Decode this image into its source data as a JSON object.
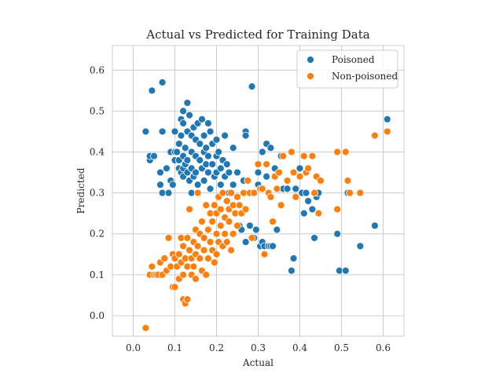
{
  "chart_data": {
    "type": "scatter",
    "title": "Actual vs Predicted for Training Data",
    "xlabel": "Actual",
    "ylabel": "Predicted",
    "xlim": [
      -0.05,
      0.65
    ],
    "ylim": [
      -0.05,
      0.66
    ],
    "xticks": [
      "0.0",
      "0.1",
      "0.2",
      "0.3",
      "0.4",
      "0.5",
      "0.6"
    ],
    "yticks": [
      "0.0",
      "0.1",
      "0.2",
      "0.3",
      "0.4",
      "0.5",
      "0.6"
    ],
    "grid": true,
    "legend_position": "top-right",
    "series": [
      {
        "name": "Poisoned",
        "color": "#1f77b4",
        "points": [
          [
            0.03,
            0.45
          ],
          [
            0.04,
            0.38
          ],
          [
            0.04,
            0.39
          ],
          [
            0.045,
            0.55
          ],
          [
            0.05,
            0.39
          ],
          [
            0.065,
            0.35
          ],
          [
            0.065,
            0.32
          ],
          [
            0.07,
            0.57
          ],
          [
            0.07,
            0.45
          ],
          [
            0.07,
            0.3
          ],
          [
            0.08,
            0.36
          ],
          [
            0.085,
            0.3
          ],
          [
            0.09,
            0.4
          ],
          [
            0.09,
            0.33
          ],
          [
            0.095,
            0.32
          ],
          [
            0.1,
            0.45
          ],
          [
            0.1,
            0.4
          ],
          [
            0.1,
            0.38
          ],
          [
            0.105,
            0.4
          ],
          [
            0.11,
            0.38
          ],
          [
            0.11,
            0.36
          ],
          [
            0.11,
            0.42
          ],
          [
            0.115,
            0.48
          ],
          [
            0.115,
            0.44
          ],
          [
            0.115,
            0.35
          ],
          [
            0.12,
            0.5
          ],
          [
            0.12,
            0.47
          ],
          [
            0.12,
            0.39
          ],
          [
            0.12,
            0.36
          ],
          [
            0.12,
            0.34
          ],
          [
            0.125,
            0.41
          ],
          [
            0.125,
            0.37
          ],
          [
            0.13,
            0.52
          ],
          [
            0.13,
            0.45
          ],
          [
            0.13,
            0.38
          ],
          [
            0.13,
            0.35
          ],
          [
            0.135,
            0.49
          ],
          [
            0.135,
            0.33
          ],
          [
            0.14,
            0.44
          ],
          [
            0.14,
            0.4
          ],
          [
            0.14,
            0.36
          ],
          [
            0.14,
            0.3
          ],
          [
            0.145,
            0.46
          ],
          [
            0.145,
            0.34
          ],
          [
            0.15,
            0.43
          ],
          [
            0.15,
            0.39
          ],
          [
            0.15,
            0.35
          ],
          [
            0.155,
            0.47
          ],
          [
            0.155,
            0.32
          ],
          [
            0.16,
            0.42
          ],
          [
            0.16,
            0.38
          ],
          [
            0.165,
            0.48
          ],
          [
            0.165,
            0.36
          ],
          [
            0.17,
            0.44
          ],
          [
            0.17,
            0.4
          ],
          [
            0.17,
            0.33
          ],
          [
            0.175,
            0.41
          ],
          [
            0.175,
            0.37
          ],
          [
            0.18,
            0.47
          ],
          [
            0.18,
            0.39
          ],
          [
            0.18,
            0.35
          ],
          [
            0.185,
            0.45
          ],
          [
            0.185,
            0.31
          ],
          [
            0.19,
            0.42
          ],
          [
            0.19,
            0.37
          ],
          [
            0.195,
            0.34
          ],
          [
            0.2,
            0.43
          ],
          [
            0.2,
            0.39
          ],
          [
            0.2,
            0.35
          ],
          [
            0.205,
            0.4
          ],
          [
            0.21,
            0.36
          ],
          [
            0.21,
            0.32
          ],
          [
            0.215,
            0.38
          ],
          [
            0.22,
            0.44
          ],
          [
            0.22,
            0.34
          ],
          [
            0.225,
            0.37
          ],
          [
            0.23,
            0.35
          ],
          [
            0.23,
            0.3
          ],
          [
            0.24,
            0.41
          ],
          [
            0.24,
            0.32
          ],
          [
            0.25,
            0.35
          ],
          [
            0.255,
            0.22
          ],
          [
            0.26,
            0.21
          ],
          [
            0.265,
            0.33
          ],
          [
            0.27,
            0.45
          ],
          [
            0.27,
            0.44
          ],
          [
            0.27,
            0.18
          ],
          [
            0.28,
            0.22
          ],
          [
            0.285,
            0.56
          ],
          [
            0.29,
            0.3
          ],
          [
            0.29,
            0.19
          ],
          [
            0.295,
            0.21
          ],
          [
            0.3,
            0.35
          ],
          [
            0.3,
            0.32
          ],
          [
            0.305,
            0.17
          ],
          [
            0.31,
            0.4
          ],
          [
            0.31,
            0.18
          ],
          [
            0.315,
            0.17
          ],
          [
            0.32,
            0.42
          ],
          [
            0.32,
            0.34
          ],
          [
            0.325,
            0.17
          ],
          [
            0.33,
            0.41
          ],
          [
            0.33,
            0.17
          ],
          [
            0.335,
            0.17
          ],
          [
            0.34,
            0.36
          ],
          [
            0.345,
            0.21
          ],
          [
            0.35,
            0.35
          ],
          [
            0.355,
            0.39
          ],
          [
            0.36,
            0.31
          ],
          [
            0.37,
            0.31
          ],
          [
            0.38,
            0.11
          ],
          [
            0.385,
            0.14
          ],
          [
            0.39,
            0.31
          ],
          [
            0.4,
            0.36
          ],
          [
            0.405,
            0.3
          ],
          [
            0.41,
            0.25
          ],
          [
            0.415,
            0.3
          ],
          [
            0.42,
            0.28
          ],
          [
            0.43,
            0.26
          ],
          [
            0.435,
            0.19
          ],
          [
            0.44,
            0.29
          ],
          [
            0.445,
            0.3
          ],
          [
            0.49,
            0.2
          ],
          [
            0.495,
            0.11
          ],
          [
            0.51,
            0.11
          ],
          [
            0.515,
            0.3
          ],
          [
            0.545,
            0.17
          ],
          [
            0.58,
            0.22
          ],
          [
            0.61,
            0.48
          ]
        ]
      },
      {
        "name": "Non-poisoned",
        "color": "#ff7f0e",
        "points": [
          [
            0.03,
            -0.03
          ],
          [
            0.04,
            0.1
          ],
          [
            0.045,
            0.12
          ],
          [
            0.05,
            0.1
          ],
          [
            0.055,
            0.1
          ],
          [
            0.06,
            0.1
          ],
          [
            0.065,
            0.13
          ],
          [
            0.07,
            0.1
          ],
          [
            0.075,
            0.14
          ],
          [
            0.08,
            0.11
          ],
          [
            0.085,
            0.19
          ],
          [
            0.09,
            0.12
          ],
          [
            0.095,
            0.15
          ],
          [
            0.095,
            0.07
          ],
          [
            0.1,
            0.14
          ],
          [
            0.1,
            0.07
          ],
          [
            0.105,
            0.12
          ],
          [
            0.11,
            0.15
          ],
          [
            0.11,
            0.09
          ],
          [
            0.115,
            0.19
          ],
          [
            0.115,
            0.13
          ],
          [
            0.12,
            0.17
          ],
          [
            0.12,
            0.1
          ],
          [
            0.12,
            0.04
          ],
          [
            0.125,
            0.14
          ],
          [
            0.125,
            0.03
          ],
          [
            0.13,
            0.19
          ],
          [
            0.13,
            0.12
          ],
          [
            0.13,
            0.04
          ],
          [
            0.135,
            0.16
          ],
          [
            0.135,
            0.26
          ],
          [
            0.14,
            0.14
          ],
          [
            0.14,
            0.1
          ],
          [
            0.145,
            0.18
          ],
          [
            0.145,
            0.12
          ],
          [
            0.15,
            0.21
          ],
          [
            0.15,
            0.15
          ],
          [
            0.15,
            0.09
          ],
          [
            0.155,
            0.17
          ],
          [
            0.155,
            0.3
          ],
          [
            0.16,
            0.2
          ],
          [
            0.16,
            0.14
          ],
          [
            0.165,
            0.23
          ],
          [
            0.165,
            0.11
          ],
          [
            0.17,
            0.19
          ],
          [
            0.17,
            0.16
          ],
          [
            0.175,
            0.27
          ],
          [
            0.175,
            0.1
          ],
          [
            0.18,
            0.21
          ],
          [
            0.18,
            0.14
          ],
          [
            0.185,
            0.25
          ],
          [
            0.185,
            0.18
          ],
          [
            0.19,
            0.23
          ],
          [
            0.19,
            0.16
          ],
          [
            0.195,
            0.27
          ],
          [
            0.195,
            0.13
          ],
          [
            0.2,
            0.25
          ],
          [
            0.2,
            0.2
          ],
          [
            0.2,
            0.15
          ],
          [
            0.205,
            0.29
          ],
          [
            0.205,
            0.18
          ],
          [
            0.21,
            0.26
          ],
          [
            0.21,
            0.22
          ],
          [
            0.215,
            0.3
          ],
          [
            0.215,
            0.17
          ],
          [
            0.22,
            0.24
          ],
          [
            0.22,
            0.2
          ],
          [
            0.225,
            0.28
          ],
          [
            0.225,
            0.18
          ],
          [
            0.23,
            0.26
          ],
          [
            0.23,
            0.23
          ],
          [
            0.235,
            0.3
          ],
          [
            0.235,
            0.16
          ],
          [
            0.24,
            0.27
          ],
          [
            0.24,
            0.2
          ],
          [
            0.245,
            0.25
          ],
          [
            0.25,
            0.29
          ],
          [
            0.25,
            0.22
          ],
          [
            0.255,
            0.27
          ],
          [
            0.26,
            0.25
          ],
          [
            0.265,
            0.3
          ],
          [
            0.27,
            0.26
          ],
          [
            0.275,
            0.33
          ],
          [
            0.28,
            0.3
          ],
          [
            0.285,
            0.19
          ],
          [
            0.29,
            0.3
          ],
          [
            0.3,
            0.37
          ],
          [
            0.305,
            0.31
          ],
          [
            0.31,
            0.31
          ],
          [
            0.315,
            0.15
          ],
          [
            0.32,
            0.37
          ],
          [
            0.325,
            0.3
          ],
          [
            0.33,
            0.29
          ],
          [
            0.335,
            0.23
          ],
          [
            0.34,
            0.34
          ],
          [
            0.345,
            0.31
          ],
          [
            0.35,
            0.35
          ],
          [
            0.355,
            0.27
          ],
          [
            0.36,
            0.39
          ],
          [
            0.37,
            0.33
          ],
          [
            0.38,
            0.4
          ],
          [
            0.385,
            0.35
          ],
          [
            0.39,
            0.29
          ],
          [
            0.4,
            0.34
          ],
          [
            0.41,
            0.39
          ],
          [
            0.415,
            0.35
          ],
          [
            0.42,
            0.36
          ],
          [
            0.43,
            0.39
          ],
          [
            0.435,
            0.3
          ],
          [
            0.44,
            0.34
          ],
          [
            0.445,
            0.25
          ],
          [
            0.45,
            0.33
          ],
          [
            0.49,
            0.4
          ],
          [
            0.49,
            0.26
          ],
          [
            0.51,
            0.4
          ],
          [
            0.515,
            0.33
          ],
          [
            0.52,
            0.3
          ],
          [
            0.545,
            0.3
          ],
          [
            0.58,
            0.44
          ],
          [
            0.61,
            0.45
          ]
        ]
      }
    ]
  }
}
